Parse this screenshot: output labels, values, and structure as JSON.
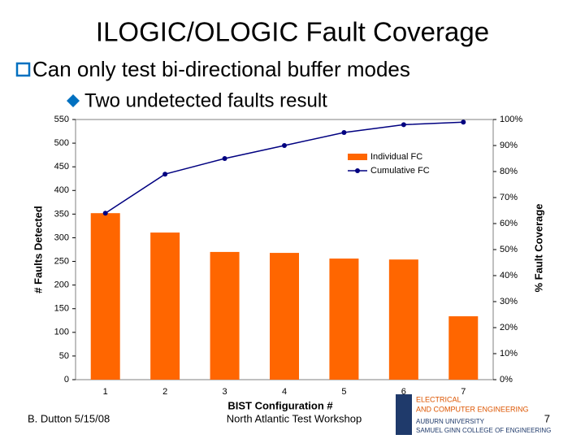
{
  "header": {
    "title": "ILOGIC/OLOGIC Fault Coverage"
  },
  "bullets": [
    "Can only test bi-directional buffer modes",
    "Two undetected faults result"
  ],
  "footer": {
    "author_date": "B. Dutton 5/15/08",
    "event": "North Atlantic Test Workshop",
    "page": "7"
  },
  "logo": [
    "ELECTRICAL",
    "AND COMPUTER ENGINEERING",
    "AUBURN UNIVERSITY",
    "SAMUEL GINN COLLEGE OF ENGINEERING"
  ],
  "chart_data": {
    "type": "bar",
    "x_label": "BIST Configuration #",
    "y_label": "# Faults Detected",
    "y2_label": "% Fault Coverage",
    "categories": [
      "1",
      "2",
      "3",
      "4",
      "5",
      "6",
      "7"
    ],
    "series": [
      {
        "name": "Individual FC",
        "type": "bar",
        "color": "#ff6600",
        "values": [
          352,
          311,
          270,
          268,
          256,
          254,
          134
        ]
      },
      {
        "name": "Cumulative FC",
        "type": "line",
        "axis": "y2",
        "color": "#000080",
        "values": [
          64,
          79,
          85,
          90,
          95,
          98,
          99
        ]
      }
    ],
    "ylim": [
      0,
      550
    ],
    "yticks": [
      0,
      50,
      100,
      150,
      200,
      250,
      300,
      350,
      400,
      450,
      500,
      550
    ],
    "y2lim": [
      0,
      100
    ],
    "y2ticks": [
      {
        "value": 0,
        "label": "0%"
      },
      {
        "value": 10,
        "label": "10%"
      },
      {
        "value": 20,
        "label": "20%"
      },
      {
        "value": 30,
        "label": "30%"
      },
      {
        "value": 40,
        "label": "40%"
      },
      {
        "value": 50,
        "label": "50%"
      },
      {
        "value": 60,
        "label": "60%"
      },
      {
        "value": 70,
        "label": "70%"
      },
      {
        "value": 80,
        "label": "80%"
      },
      {
        "value": 90,
        "label": "90%"
      },
      {
        "value": 100,
        "label": "100%"
      }
    ],
    "grid": false,
    "legend": "top-right"
  }
}
